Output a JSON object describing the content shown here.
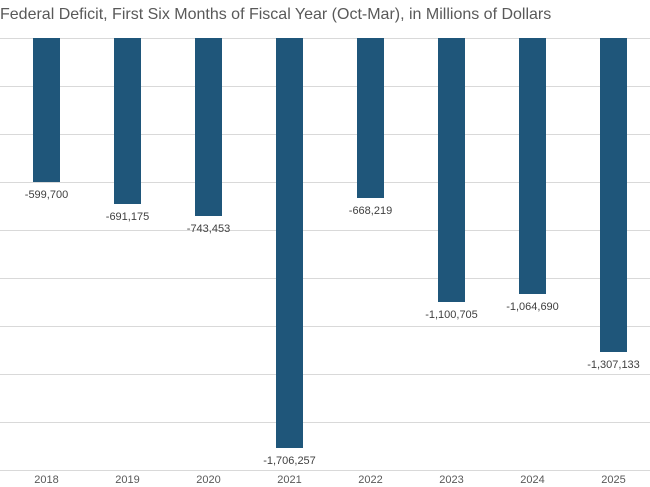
{
  "title": "Federal Deficit, First Six Months of Fiscal Year (Oct-Mar), in Millions of Dollars",
  "colors": {
    "bar": "#1F567A",
    "title_text": "#595959",
    "axis_text": "#595959",
    "data_label_text": "#404040",
    "gridline": "#D9D9D9",
    "background": "#FFFFFF"
  },
  "chart_data": {
    "type": "bar",
    "title": "Federal Deficit, First Six Months of Fiscal Year (Oct-Mar), in Millions of Dollars",
    "categories": [
      "2018",
      "2019",
      "2020",
      "2021",
      "2022",
      "2023",
      "2024",
      "2025"
    ],
    "values": [
      -599700,
      -691175,
      -743453,
      -1706257,
      -668219,
      -1100705,
      -1064690,
      -1307133
    ],
    "data_labels": [
      "-599,700",
      "-691,175",
      "-743,453",
      "-1,706,257",
      "-668,219",
      "-1,100,705",
      "-1,064,690",
      "-1,307,133"
    ],
    "xlabel": "",
    "ylabel": "",
    "ylim": [
      -1800000,
      0
    ],
    "gridline_step": 200000,
    "grid": true,
    "legend": "none",
    "bar_color": "#1F567A",
    "data_label_position": "outside-end",
    "y_axis_tick_labels_visible": false,
    "orientation": "vertical-negative"
  }
}
